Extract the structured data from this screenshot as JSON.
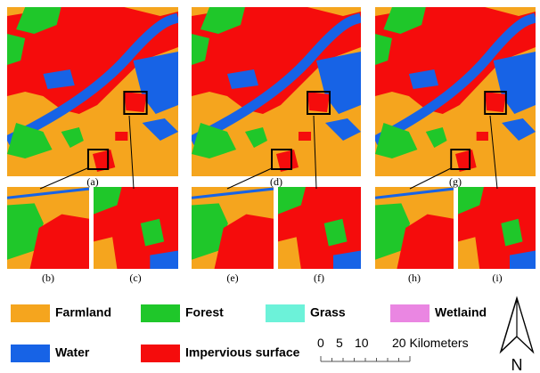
{
  "panels": [
    "(a)",
    "(b)",
    "(c)",
    "(d)",
    "(e)",
    "(f)",
    "(g)",
    "(h)",
    "(i)"
  ],
  "legend": [
    {
      "label": "Farmland",
      "color": "#f5a51e"
    },
    {
      "label": "Forest",
      "color": "#1fc72a"
    },
    {
      "label": "Grass",
      "color": "#6cf2d9"
    },
    {
      "label": "Wetlaind",
      "color": "#ea86e2"
    },
    {
      "label": "Water",
      "color": "#1763e6"
    },
    {
      "label": "Impervious surface",
      "color": "#f50c0c"
    }
  ],
  "scale_bar": {
    "labels": [
      "0",
      "5",
      "10",
      "20 Kilometers"
    ]
  },
  "north": "N"
}
